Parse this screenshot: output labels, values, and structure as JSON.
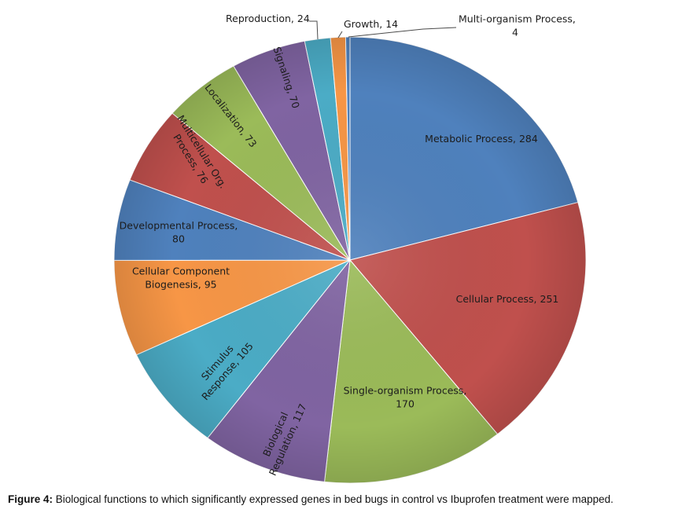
{
  "chart_data": {
    "type": "pie",
    "title": "",
    "slices": [
      {
        "label": "Metabolic Process",
        "value": 284,
        "color": "#4f81bd"
      },
      {
        "label": "Cellular Process",
        "value": 251,
        "color": "#c0504d"
      },
      {
        "label": "Single-organism Process",
        "value": 170,
        "color": "#9bbb59"
      },
      {
        "label": "Biological Regulation",
        "value": 117,
        "color": "#8064a2"
      },
      {
        "label": "Stimulus Response",
        "value": 105,
        "color": "#4bacc6"
      },
      {
        "label": "Cellular Component Biogenesis",
        "value": 95,
        "color": "#f79646"
      },
      {
        "label": "Developmental Process",
        "value": 80,
        "color": "#4f81bd"
      },
      {
        "label": "Multicellular Org. Process",
        "value": 76,
        "color": "#c0504d"
      },
      {
        "label": "Localization",
        "value": 73,
        "color": "#9bbb59"
      },
      {
        "label": "Signaling",
        "value": 70,
        "color": "#8064a2"
      },
      {
        "label": "Reproduction",
        "value": 24,
        "color": "#4bacc6"
      },
      {
        "label": "Growth",
        "value": 14,
        "color": "#f79646"
      },
      {
        "label": "Multi-organism Process",
        "value": 4,
        "color": "#4f81bd"
      }
    ],
    "data_labels": [
      [
        "Metabolic Process, 284"
      ],
      [
        "Cellular Process, 251"
      ],
      [
        "Single-organism Process,",
        "170"
      ],
      [
        "Biological",
        "Regulation, 117"
      ],
      [
        "Stimulus",
        "Response, 105"
      ],
      [
        "Cellular Component",
        "Biogenesis, 95"
      ],
      [
        "Developmental Process,",
        "80"
      ],
      [
        "Multicellular Org.",
        "Process, 76"
      ],
      [
        "Localization, 73"
      ],
      [
        "Signaling, 70"
      ],
      [
        "Reproduction, 24"
      ],
      [
        "Growth, 14"
      ],
      [
        "Multi-organism Process,",
        "4"
      ]
    ]
  },
  "caption": {
    "prefix": "Figure 4:",
    "text": " Biological functions to which significantly expressed genes in bed bugs in control vs Ibuprofen treatment were mapped."
  }
}
